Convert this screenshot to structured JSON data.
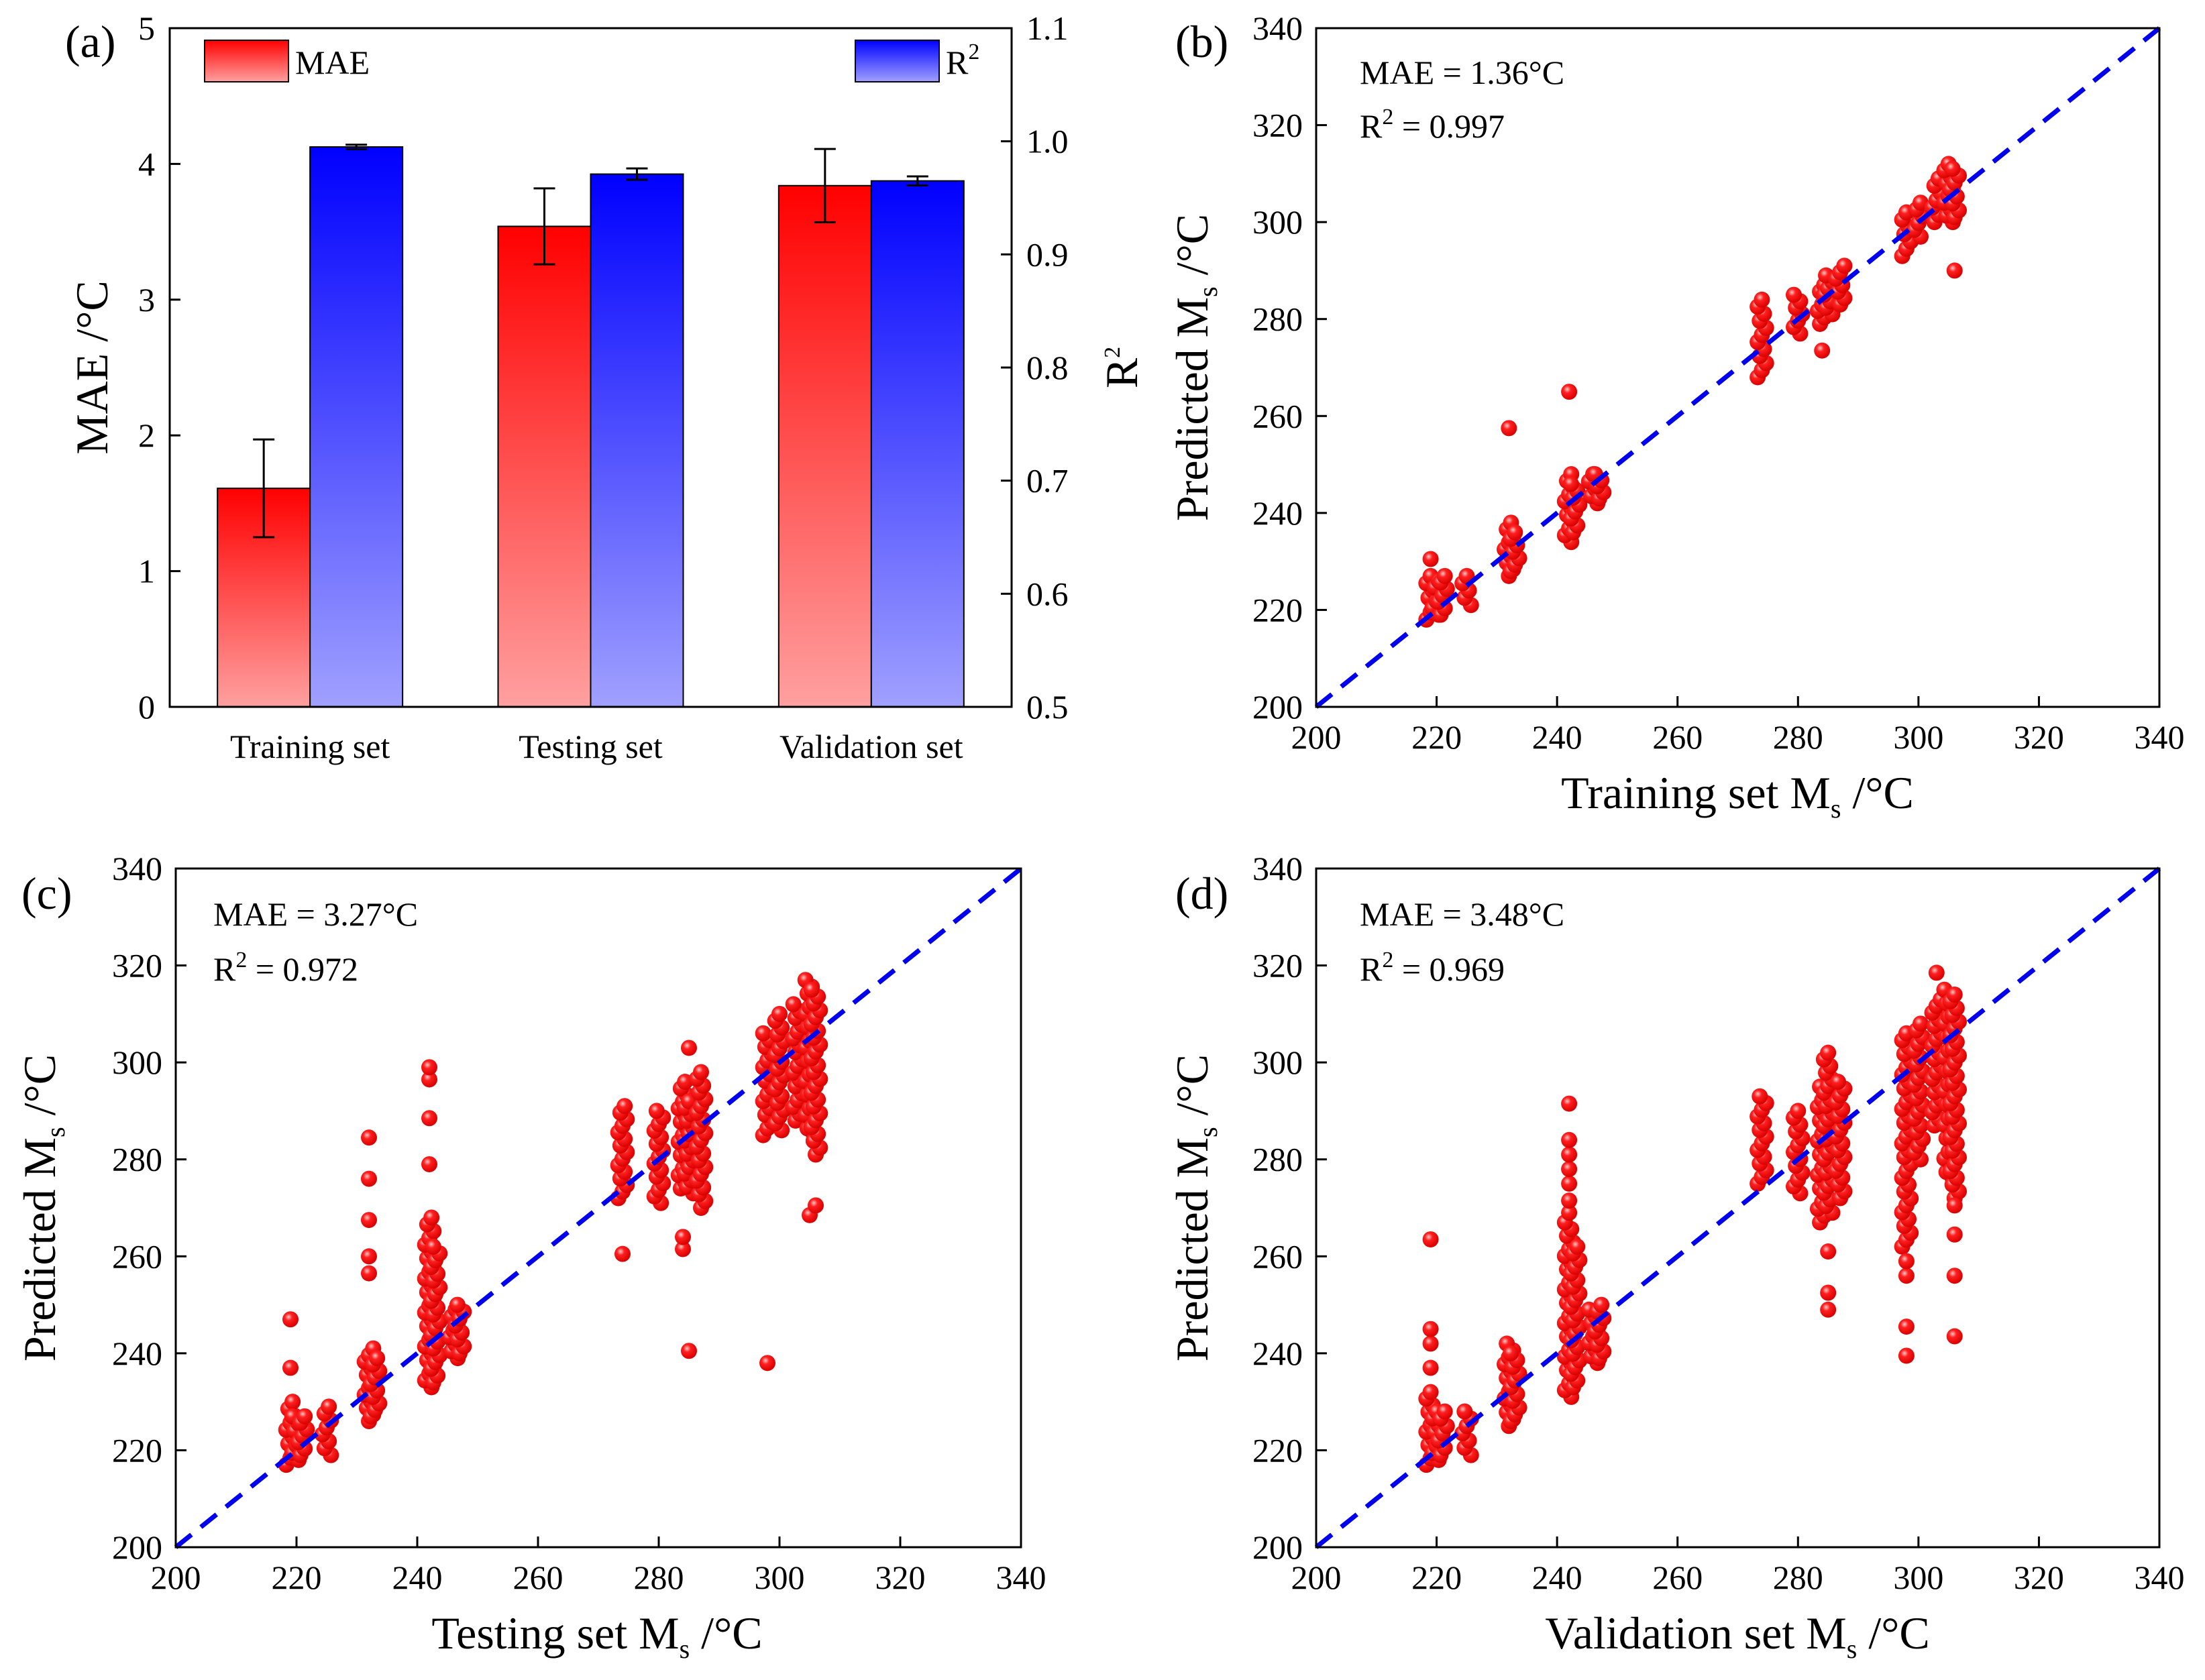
{
  "colors": {
    "mae_top": "#ff0000",
    "mae_bottom": "#ffa0a0",
    "r2_top": "#0000ff",
    "r2_bottom": "#a0a0ff",
    "points": "#ff1010",
    "diagonal": "#0000ee",
    "axis": "#000000"
  },
  "chart_data": [
    {
      "id": "a",
      "tag": "(a)",
      "type": "bar",
      "categories": [
        "Training set",
        "Testing set",
        "Validation set"
      ],
      "series": [
        {
          "name": "MAE",
          "axis": "left",
          "values": [
            1.61,
            3.54,
            3.84
          ],
          "errors": [
            0.36,
            0.28,
            0.27
          ]
        },
        {
          "name": "R2",
          "axis": "right",
          "values": [
            0.995,
            0.971,
            0.965
          ],
          "errors": [
            0.002,
            0.005,
            0.004
          ]
        }
      ],
      "ylabel": "MAE /°C",
      "ylim": [
        0,
        5
      ],
      "yticks": [
        "0",
        "1",
        "2",
        "3",
        "4",
        "5"
      ],
      "y2label": "R",
      "y2label_sup": "2",
      "y2lim": [
        0.5,
        1.1
      ],
      "y2ticks": [
        "0.5",
        "0.6",
        "0.7",
        "0.8",
        "0.9",
        "1.0",
        "1.1"
      ],
      "legend": {
        "mae": "MAE",
        "r2": "R",
        "r2_sup": "2"
      }
    },
    {
      "id": "b",
      "tag": "(b)",
      "type": "scatter",
      "xlabel": "Training set M",
      "xlabel_sub": "s",
      "xlabel_end": " /°C",
      "ylabel": "Predicted M",
      "ylabel_sub": "s",
      "ylabel_end": " /°C",
      "xlim": [
        200,
        340
      ],
      "ylim": [
        200,
        340
      ],
      "ticks": [
        "200",
        "220",
        "240",
        "260",
        "280",
        "300",
        "320",
        "340"
      ],
      "mae_text": "MAE = 1.36°C",
      "r2_text": "R",
      "r2_sup": "2",
      "r2_value": " = 0.997",
      "clusters": [
        {
          "x": 219,
          "ymin": 218,
          "ymax": 227
        },
        {
          "x": 220,
          "ymin": 219,
          "ymax": 226
        },
        {
          "x": 221,
          "ymin": 219,
          "ymax": 227
        },
        {
          "x": 225,
          "ymin": 221,
          "ymax": 227
        },
        {
          "x": 232,
          "ymin": 227,
          "ymax": 238
        },
        {
          "x": 233,
          "ymin": 228,
          "ymax": 236
        },
        {
          "x": 242,
          "ymin": 234,
          "ymax": 248
        },
        {
          "x": 243,
          "ymin": 236,
          "ymax": 246
        },
        {
          "x": 246,
          "ymin": 242,
          "ymax": 248
        },
        {
          "x": 247,
          "ymin": 243,
          "ymax": 248
        },
        {
          "x": 274,
          "ymin": 268,
          "ymax": 284
        },
        {
          "x": 280,
          "ymin": 277,
          "ymax": 285
        },
        {
          "x": 284,
          "ymin": 279,
          "ymax": 287
        },
        {
          "x": 285,
          "ymin": 281,
          "ymax": 289
        },
        {
          "x": 287,
          "ymin": 283,
          "ymax": 291
        },
        {
          "x": 298,
          "ymin": 293,
          "ymax": 302
        },
        {
          "x": 300,
          "ymin": 297,
          "ymax": 304
        },
        {
          "x": 303,
          "ymin": 300,
          "ymax": 309
        },
        {
          "x": 305,
          "ymin": 300,
          "ymax": 312
        },
        {
          "x": 306,
          "ymin": 301,
          "ymax": 311
        }
      ],
      "outliers": [
        [
          219,
          230.5
        ],
        [
          232,
          257.5
        ],
        [
          242,
          265
        ],
        [
          284,
          273.5
        ],
        [
          306,
          290
        ]
      ]
    },
    {
      "id": "c",
      "tag": "(c)",
      "type": "scatter",
      "xlabel": "Testing set M",
      "xlabel_sub": "s",
      "xlabel_end": " /°C",
      "ylabel": "Predicted M",
      "ylabel_sub": "s",
      "ylabel_end": " /°C",
      "xlim": [
        200,
        340
      ],
      "ylim": [
        200,
        340
      ],
      "ticks": [
        "200",
        "220",
        "240",
        "260",
        "280",
        "300",
        "320",
        "340"
      ],
      "mae_text": "MAE = 3.27°C",
      "r2_text": "R",
      "r2_sup": "2",
      "r2_value": " = 0.972",
      "clusters": [
        {
          "x": 219,
          "ymin": 217,
          "ymax": 230
        },
        {
          "x": 220,
          "ymin": 218,
          "ymax": 227
        },
        {
          "x": 221,
          "ymin": 219,
          "ymax": 227
        },
        {
          "x": 225,
          "ymin": 219,
          "ymax": 229
        },
        {
          "x": 232,
          "ymin": 226,
          "ymax": 241
        },
        {
          "x": 233,
          "ymin": 227,
          "ymax": 239
        },
        {
          "x": 242,
          "ymin": 233,
          "ymax": 268
        },
        {
          "x": 243,
          "ymin": 234,
          "ymax": 262
        },
        {
          "x": 246,
          "ymin": 239,
          "ymax": 249
        },
        {
          "x": 247,
          "ymin": 240,
          "ymax": 250
        },
        {
          "x": 274,
          "ymin": 272,
          "ymax": 291
        },
        {
          "x": 280,
          "ymin": 271,
          "ymax": 290
        },
        {
          "x": 284,
          "ymin": 274,
          "ymax": 296
        },
        {
          "x": 285,
          "ymin": 273,
          "ymax": 292
        },
        {
          "x": 287,
          "ymin": 270,
          "ymax": 298
        },
        {
          "x": 298,
          "ymin": 285,
          "ymax": 306
        },
        {
          "x": 300,
          "ymin": 286,
          "ymax": 310
        },
        {
          "x": 303,
          "ymin": 288,
          "ymax": 312
        },
        {
          "x": 305,
          "ymin": 285,
          "ymax": 317
        },
        {
          "x": 306,
          "ymin": 281,
          "ymax": 315
        }
      ],
      "outliers": [
        [
          219,
          237
        ],
        [
          219,
          247
        ],
        [
          232,
          256.5
        ],
        [
          232,
          260
        ],
        [
          232,
          267.5
        ],
        [
          232,
          276
        ],
        [
          232,
          284.5
        ],
        [
          242,
          279
        ],
        [
          242,
          288.5
        ],
        [
          242,
          296.5
        ],
        [
          242,
          299
        ],
        [
          274,
          260.5
        ],
        [
          284,
          261.5
        ],
        [
          284,
          264
        ],
        [
          285,
          240.5
        ],
        [
          285,
          303
        ],
        [
          298,
          238
        ],
        [
          305,
          268.5
        ],
        [
          306,
          270.5
        ]
      ]
    },
    {
      "id": "d",
      "tag": "(d)",
      "type": "scatter",
      "xlabel": "Validation set M",
      "xlabel_sub": "s",
      "xlabel_end": " /°C",
      "ylabel": "Predicted M",
      "ylabel_sub": "s",
      "ylabel_end": " /°C",
      "xlim": [
        200,
        340
      ],
      "ylim": [
        200,
        340
      ],
      "ticks": [
        "200",
        "220",
        "240",
        "260",
        "280",
        "300",
        "320",
        "340"
      ],
      "mae_text": "MAE = 3.48°C",
      "r2_text": "R",
      "r2_sup": "2",
      "r2_value": " = 0.969",
      "clusters": [
        {
          "x": 219,
          "ymin": 217,
          "ymax": 232
        },
        {
          "x": 220,
          "ymin": 218,
          "ymax": 228
        },
        {
          "x": 221,
          "ymin": 219,
          "ymax": 228
        },
        {
          "x": 225,
          "ymin": 219,
          "ymax": 228
        },
        {
          "x": 232,
          "ymin": 225,
          "ymax": 242
        },
        {
          "x": 233,
          "ymin": 226,
          "ymax": 240
        },
        {
          "x": 242,
          "ymin": 231,
          "ymax": 267
        },
        {
          "x": 243,
          "ymin": 233,
          "ymax": 262
        },
        {
          "x": 246,
          "ymin": 238,
          "ymax": 249
        },
        {
          "x": 247,
          "ymin": 239,
          "ymax": 250
        },
        {
          "x": 274,
          "ymin": 275,
          "ymax": 293
        },
        {
          "x": 280,
          "ymin": 273,
          "ymax": 290
        },
        {
          "x": 284,
          "ymin": 267,
          "ymax": 295
        },
        {
          "x": 285,
          "ymin": 269,
          "ymax": 302
        },
        {
          "x": 287,
          "ymin": 272,
          "ymax": 296
        },
        {
          "x": 298,
          "ymin": 262,
          "ymax": 306
        },
        {
          "x": 300,
          "ymin": 280,
          "ymax": 308
        },
        {
          "x": 303,
          "ymin": 287,
          "ymax": 313
        },
        {
          "x": 305,
          "ymin": 276,
          "ymax": 315
        },
        {
          "x": 306,
          "ymin": 272,
          "ymax": 314
        }
      ],
      "outliers": [
        [
          219,
          237
        ],
        [
          219,
          242
        ],
        [
          219,
          245
        ],
        [
          219,
          263.5
        ],
        [
          242,
          269
        ],
        [
          242,
          271.5
        ],
        [
          242,
          275
        ],
        [
          242,
          278
        ],
        [
          242,
          281
        ],
        [
          242,
          284
        ],
        [
          242,
          291.5
        ],
        [
          285,
          249
        ],
        [
          285,
          252.5
        ],
        [
          285,
          261
        ],
        [
          298,
          239.5
        ],
        [
          298,
          245.5
        ],
        [
          298,
          256
        ],
        [
          298,
          259
        ],
        [
          303,
          318.5
        ],
        [
          306,
          243.5
        ],
        [
          306,
          256
        ],
        [
          306,
          264.5
        ],
        [
          306,
          270.5
        ]
      ]
    }
  ]
}
